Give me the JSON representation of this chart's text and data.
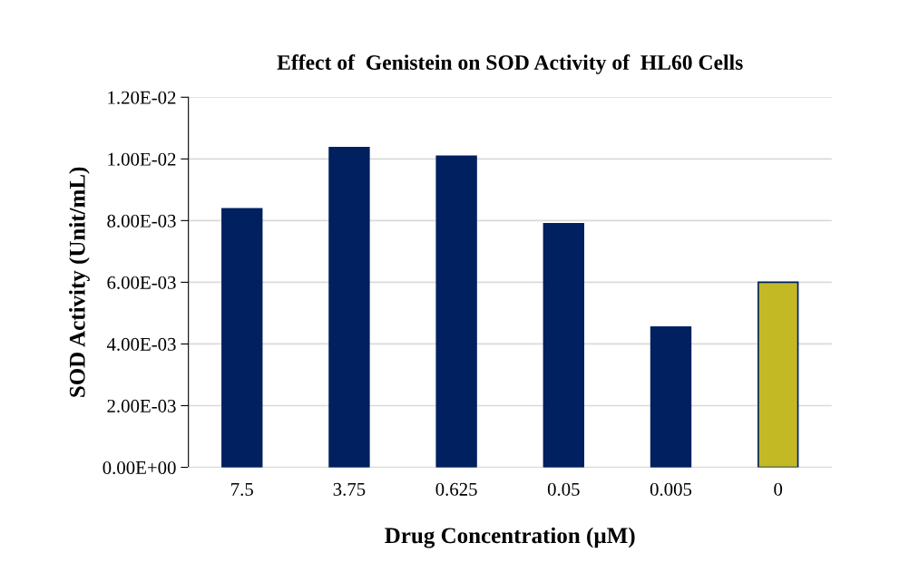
{
  "chart_data": {
    "type": "bar",
    "title": "Effect of  Genistein on SOD Activity of  HL60 Cells",
    "xlabel": "Drug Concentration (µM)",
    "ylabel": "SOD Activity (Unit/mL)",
    "categories": [
      "7.5",
      "3.75",
      "0.625",
      "0.05",
      "0.005",
      "0"
    ],
    "values": [
      0.00838,
      0.01037,
      0.01009,
      0.0079,
      0.00455,
      0.006
    ],
    "colors": [
      "#002060",
      "#002060",
      "#002060",
      "#002060",
      "#002060",
      "#c3b925"
    ],
    "ylim": [
      0,
      0.012
    ],
    "yticks": [
      {
        "value": 0,
        "label": "0.00E+00"
      },
      {
        "value": 0.002,
        "label": "2.00E-03"
      },
      {
        "value": 0.004,
        "label": "4.00E-03"
      },
      {
        "value": 0.006,
        "label": "6.00E-03"
      },
      {
        "value": 0.008,
        "label": "8.00E-03"
      },
      {
        "value": 0.01,
        "label": "1.00E-02"
      },
      {
        "value": 0.012,
        "label": "1.20E-02"
      }
    ],
    "grid": "y"
  }
}
